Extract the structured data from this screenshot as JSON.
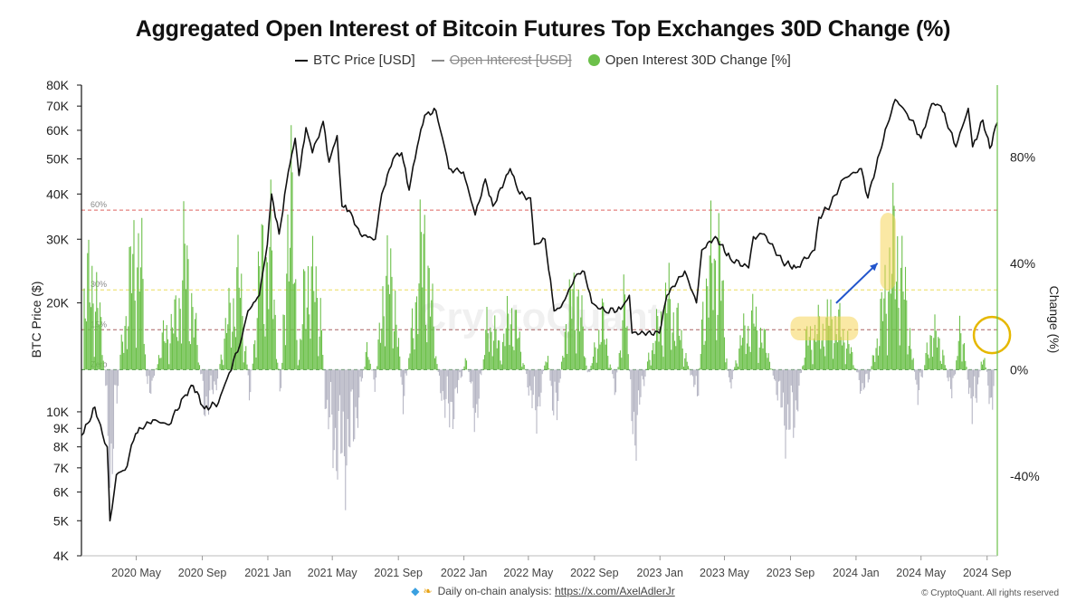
{
  "chart_data": {
    "type": "line",
    "title": "Aggregated Open Interest of Bitcoin Futures Top Exchanges 30D Change (%)",
    "legend": [
      {
        "label": "BTC Price [USD]",
        "style": "line",
        "color": "#111111"
      },
      {
        "label": "Open Interest [USD]",
        "style": "line",
        "color": "#8a8a8a",
        "hidden": true
      },
      {
        "label": "Open Interest 30D Change [%]",
        "style": "dot",
        "color": "#6cc04a"
      }
    ],
    "ylabel_left": "BTC Price ($)",
    "ylabel_right": "Change (%)",
    "left_axis": {
      "scale": "log",
      "range": [
        4000,
        80000
      ],
      "ticks": [
        {
          "v": 80000,
          "label": "80K"
        },
        {
          "v": 70000,
          "label": "70K"
        },
        {
          "v": 60000,
          "label": "60K"
        },
        {
          "v": 50000,
          "label": "50K"
        },
        {
          "v": 40000,
          "label": "40K"
        },
        {
          "v": 30000,
          "label": "30K"
        },
        {
          "v": 20000,
          "label": "20K"
        },
        {
          "v": 10000,
          "label": "10K"
        },
        {
          "v": 9000,
          "label": "9K"
        },
        {
          "v": 8000,
          "label": "8K"
        },
        {
          "v": 7000,
          "label": "7K"
        },
        {
          "v": 6000,
          "label": "6K"
        },
        {
          "v": 5000,
          "label": "5K"
        },
        {
          "v": 4000,
          "label": "4K"
        }
      ]
    },
    "right_axis": {
      "scale": "linear",
      "range": [
        -70,
        107
      ],
      "ticks": [
        {
          "v": 80,
          "label": "80%"
        },
        {
          "v": 40,
          "label": "40%"
        },
        {
          "v": 0,
          "label": "0%"
        },
        {
          "v": -40,
          "label": "-40%"
        }
      ]
    },
    "x_axis": {
      "range": [
        "2020-01-20",
        "2024-09-20"
      ],
      "ticks": [
        {
          "date": "2020-05-01",
          "label": "2020 May"
        },
        {
          "date": "2020-09-01",
          "label": "2020 Sep"
        },
        {
          "date": "2021-01-01",
          "label": "2021 Jan"
        },
        {
          "date": "2021-05-01",
          "label": "2021 May"
        },
        {
          "date": "2021-09-01",
          "label": "2021 Sep"
        },
        {
          "date": "2022-01-01",
          "label": "2022 Jan"
        },
        {
          "date": "2022-05-01",
          "label": "2022 May"
        },
        {
          "date": "2022-09-01",
          "label": "2022 Sep"
        },
        {
          "date": "2023-01-01",
          "label": "2023 Jan"
        },
        {
          "date": "2023-05-01",
          "label": "2023 May"
        },
        {
          "date": "2023-09-01",
          "label": "2023 Sep"
        },
        {
          "date": "2024-01-01",
          "label": "2024 Jan"
        },
        {
          "date": "2024-05-01",
          "label": "2024 May"
        },
        {
          "date": "2024-09-01",
          "label": "2024 Sep"
        }
      ]
    },
    "reference_lines": [
      {
        "value": 60,
        "label": "60%",
        "color": "#d9534f"
      },
      {
        "value": 30,
        "label": "30%",
        "color": "#e8d84a"
      },
      {
        "value": 15,
        "label": "15%",
        "color": "#a05050"
      },
      {
        "value": 0,
        "label": "Zero",
        "color": "#2a7a2a"
      }
    ],
    "btc_price": [
      [
        "2020-01-20",
        8600
      ],
      [
        "2020-02-01",
        9300
      ],
      [
        "2020-02-14",
        10300
      ],
      [
        "2020-02-28",
        8700
      ],
      [
        "2020-03-08",
        8000
      ],
      [
        "2020-03-13",
        5000
      ],
      [
        "2020-03-25",
        6700
      ],
      [
        "2020-04-10",
        6900
      ],
      [
        "2020-04-30",
        8700
      ],
      [
        "2020-05-10",
        9000
      ],
      [
        "2020-06-01",
        9500
      ],
      [
        "2020-07-01",
        9200
      ],
      [
        "2020-07-28",
        11000
      ],
      [
        "2020-08-15",
        11800
      ],
      [
        "2020-09-05",
        10200
      ],
      [
        "2020-10-01",
        10600
      ],
      [
        "2020-10-21",
        12800
      ],
      [
        "2020-11-10",
        15300
      ],
      [
        "2020-11-25",
        19000
      ],
      [
        "2020-12-16",
        21000
      ],
      [
        "2020-12-31",
        29000
      ],
      [
        "2021-01-08",
        40000
      ],
      [
        "2021-01-22",
        31000
      ],
      [
        "2021-02-08",
        46000
      ],
      [
        "2021-02-21",
        57000
      ],
      [
        "2021-02-28",
        45000
      ],
      [
        "2021-03-13",
        61000
      ],
      [
        "2021-03-25",
        52000
      ],
      [
        "2021-04-14",
        63500
      ],
      [
        "2021-04-25",
        49000
      ],
      [
        "2021-05-10",
        58000
      ],
      [
        "2021-05-19",
        37000
      ],
      [
        "2021-06-01",
        36000
      ],
      [
        "2021-06-22",
        31000
      ],
      [
        "2021-07-20",
        30000
      ],
      [
        "2021-08-01",
        40000
      ],
      [
        "2021-08-22",
        50000
      ],
      [
        "2021-09-07",
        52000
      ],
      [
        "2021-09-21",
        41000
      ],
      [
        "2021-10-06",
        54000
      ],
      [
        "2021-10-20",
        66000
      ],
      [
        "2021-11-10",
        68000
      ],
      [
        "2021-11-26",
        54000
      ],
      [
        "2021-12-04",
        47000
      ],
      [
        "2021-12-31",
        46000
      ],
      [
        "2022-01-22",
        35000
      ],
      [
        "2022-02-10",
        44000
      ],
      [
        "2022-02-24",
        37000
      ],
      [
        "2022-03-28",
        47000
      ],
      [
        "2022-04-15",
        40000
      ],
      [
        "2022-05-05",
        39000
      ],
      [
        "2022-05-12",
        29000
      ],
      [
        "2022-06-01",
        30000
      ],
      [
        "2022-06-18",
        19000
      ],
      [
        "2022-07-01",
        19500
      ],
      [
        "2022-07-30",
        24000
      ],
      [
        "2022-08-13",
        24400
      ],
      [
        "2022-08-27",
        20000
      ],
      [
        "2022-09-20",
        19000
      ],
      [
        "2022-10-20",
        19200
      ],
      [
        "2022-11-05",
        21000
      ],
      [
        "2022-11-10",
        16500
      ],
      [
        "2022-12-31",
        16500
      ],
      [
        "2023-01-14",
        21000
      ],
      [
        "2023-02-16",
        24500
      ],
      [
        "2023-03-10",
        20000
      ],
      [
        "2023-03-20",
        28000
      ],
      [
        "2023-04-14",
        30500
      ],
      [
        "2023-05-12",
        26500
      ],
      [
        "2023-06-15",
        25000
      ],
      [
        "2023-06-24",
        30500
      ],
      [
        "2023-07-14",
        31000
      ],
      [
        "2023-08-17",
        26000
      ],
      [
        "2023-09-11",
        25000
      ],
      [
        "2023-10-16",
        28000
      ],
      [
        "2023-10-24",
        34500
      ],
      [
        "2023-11-15",
        37500
      ],
      [
        "2023-12-08",
        44000
      ],
      [
        "2024-01-11",
        47000
      ],
      [
        "2024-01-23",
        39000
      ],
      [
        "2024-02-14",
        52000
      ],
      [
        "2024-02-28",
        62000
      ],
      [
        "2024-03-14",
        73000
      ],
      [
        "2024-04-01",
        68000
      ],
      [
        "2024-04-13",
        64000
      ],
      [
        "2024-05-01",
        57000
      ],
      [
        "2024-05-21",
        71000
      ],
      [
        "2024-06-07",
        70000
      ],
      [
        "2024-06-24",
        60000
      ],
      [
        "2024-07-05",
        54000
      ],
      [
        "2024-07-28",
        69000
      ],
      [
        "2024-08-05",
        54000
      ],
      [
        "2024-08-24",
        64000
      ],
      [
        "2024-09-06",
        53500
      ],
      [
        "2024-09-20",
        63000
      ]
    ],
    "open_interest_30d_change_pct": [
      [
        "2020-01-22",
        35
      ],
      [
        "2020-02-12",
        45
      ],
      [
        "2020-03-01",
        10
      ],
      [
        "2020-03-14",
        -55
      ],
      [
        "2020-04-01",
        5
      ],
      [
        "2020-04-20",
        45
      ],
      [
        "2020-05-08",
        65
      ],
      [
        "2020-05-22",
        -15
      ],
      [
        "2020-06-20",
        15
      ],
      [
        "2020-07-15",
        25
      ],
      [
        "2020-07-30",
        55
      ],
      [
        "2020-08-10",
        40
      ],
      [
        "2020-09-05",
        -18
      ],
      [
        "2020-09-25",
        -10
      ],
      [
        "2020-10-15",
        20
      ],
      [
        "2020-11-10",
        45
      ],
      [
        "2020-11-28",
        -12
      ],
      [
        "2020-12-20",
        55
      ],
      [
        "2021-01-08",
        55
      ],
      [
        "2021-01-25",
        -15
      ],
      [
        "2021-02-10",
        95
      ],
      [
        "2021-02-28",
        5
      ],
      [
        "2021-03-15",
        50
      ],
      [
        "2021-04-10",
        30
      ],
      [
        "2021-04-20",
        -25
      ],
      [
        "2021-05-20",
        -45
      ],
      [
        "2021-06-10",
        -30
      ],
      [
        "2021-07-05",
        10
      ],
      [
        "2021-07-20",
        -10
      ],
      [
        "2021-08-05",
        45
      ],
      [
        "2021-08-25",
        40
      ],
      [
        "2021-09-10",
        -20
      ],
      [
        "2021-10-05",
        40
      ],
      [
        "2021-10-20",
        65
      ],
      [
        "2021-11-15",
        -5
      ],
      [
        "2021-12-05",
        -25
      ],
      [
        "2022-01-05",
        5
      ],
      [
        "2022-01-25",
        -25
      ],
      [
        "2022-02-15",
        25
      ],
      [
        "2022-03-10",
        10
      ],
      [
        "2022-04-01",
        30
      ],
      [
        "2022-05-15",
        -25
      ],
      [
        "2022-06-05",
        10
      ],
      [
        "2022-06-20",
        -30
      ],
      [
        "2022-07-10",
        25
      ],
      [
        "2022-08-01",
        40
      ],
      [
        "2022-08-20",
        -5
      ],
      [
        "2022-09-15",
        25
      ],
      [
        "2022-10-10",
        -10
      ],
      [
        "2022-10-28",
        35
      ],
      [
        "2022-11-12",
        -35
      ],
      [
        "2022-12-10",
        5
      ],
      [
        "2023-01-15",
        35
      ],
      [
        "2023-02-05",
        20
      ],
      [
        "2023-03-12",
        -15
      ],
      [
        "2023-03-25",
        40
      ],
      [
        "2023-04-20",
        60
      ],
      [
        "2023-05-10",
        -10
      ],
      [
        "2023-06-01",
        15
      ],
      [
        "2023-06-25",
        25
      ],
      [
        "2023-07-20",
        10
      ],
      [
        "2023-08-20",
        -25
      ],
      [
        "2023-09-05",
        -30
      ],
      [
        "2023-10-01",
        15
      ],
      [
        "2023-10-25",
        20
      ],
      [
        "2023-11-20",
        25
      ],
      [
        "2023-12-15",
        15
      ],
      [
        "2024-01-12",
        -10
      ],
      [
        "2024-01-25",
        -5
      ],
      [
        "2024-02-20",
        30
      ],
      [
        "2024-03-05",
        55
      ],
      [
        "2024-03-18",
        60
      ],
      [
        "2024-04-10",
        20
      ],
      [
        "2024-04-25",
        -15
      ],
      [
        "2024-05-20",
        20
      ],
      [
        "2024-06-10",
        10
      ],
      [
        "2024-06-28",
        -15
      ],
      [
        "2024-07-15",
        25
      ],
      [
        "2024-08-05",
        -25
      ],
      [
        "2024-08-25",
        10
      ],
      [
        "2024-09-10",
        -20
      ],
      [
        "2024-09-20",
        15
      ]
    ],
    "annotations": [
      {
        "type": "highlight-box",
        "color": "#f5d55a",
        "x_start": "2023-09-01",
        "x_end": "2024-01-05",
        "y_top": 20,
        "y_bottom": 11
      },
      {
        "type": "highlight-box",
        "color": "#f5d55a",
        "x_start": "2024-02-15",
        "x_end": "2024-03-15",
        "y_top": 59,
        "y_bottom": 30
      },
      {
        "type": "arrow",
        "color": "#2255cc",
        "from": [
          "2023-11-25",
          25
        ],
        "to": [
          "2024-02-10",
          40
        ]
      },
      {
        "type": "circle",
        "color": "#e6b800",
        "center": [
          "2024-09-10",
          13
        ]
      }
    ],
    "watermark": "CryptoQuant"
  },
  "footer": {
    "text": "Daily on-chain analysis:",
    "link": "https://x.com/AxelAdlerJr",
    "icons": [
      "diamond-icon",
      "raised-hands-icon"
    ]
  },
  "copyright": "© CryptoQuant. All rights reserved"
}
